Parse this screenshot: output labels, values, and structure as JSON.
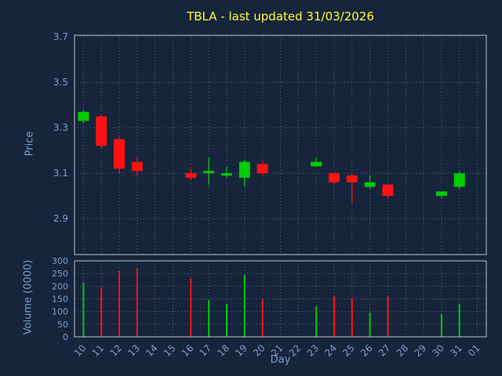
{
  "chart_data": {
    "type": "candlestick",
    "title": "TBLA - last updated 31/03/2026",
    "xlabel": "Day",
    "ylabel_price": "Price",
    "ylabel_volume": "Volume (0000)",
    "grid": "dotted",
    "price_ticks": [
      2.9,
      3.1,
      3.3,
      3.5,
      3.7
    ],
    "price_range": [
      2.742,
      3.707
    ],
    "volume_ticks": [
      0,
      50,
      100,
      150,
      200,
      250,
      300
    ],
    "volume_range": [
      0,
      300
    ],
    "x_labels": [
      "10",
      "11",
      "12",
      "13",
      "14",
      "15",
      "16",
      "17",
      "18",
      "19",
      "20",
      "21",
      "22",
      "23",
      "24",
      "25",
      "26",
      "27",
      "28",
      "29",
      "30",
      "31",
      "01"
    ],
    "colors": {
      "background": "#16243c",
      "title": "#ffff33",
      "axis_text": "#7e9fce",
      "grid": "#54667e",
      "border": "#bcc6d2",
      "up": "#00cc00",
      "down": "#ff1212"
    },
    "candles": [
      {
        "day": "10",
        "open": 3.33,
        "high": 3.38,
        "low": 3.32,
        "close": 3.37,
        "volume": 215
      },
      {
        "day": "11",
        "open": 3.35,
        "high": 3.36,
        "low": 3.21,
        "close": 3.22,
        "volume": 195
      },
      {
        "day": "12",
        "open": 3.25,
        "high": 3.26,
        "low": 3.1,
        "close": 3.12,
        "volume": 260
      },
      {
        "day": "13",
        "open": 3.15,
        "high": 3.17,
        "low": 3.09,
        "close": 3.11,
        "volume": 270
      },
      {
        "day": "16",
        "open": 3.1,
        "high": 3.12,
        "low": 3.07,
        "close": 3.08,
        "volume": 230
      },
      {
        "day": "17",
        "open": 3.1,
        "high": 3.17,
        "low": 3.05,
        "close": 3.11,
        "volume": 145
      },
      {
        "day": "18",
        "open": 3.09,
        "high": 3.13,
        "low": 3.08,
        "close": 3.1,
        "volume": 130
      },
      {
        "day": "19",
        "open": 3.08,
        "high": 3.16,
        "low": 3.04,
        "close": 3.15,
        "volume": 245
      },
      {
        "day": "20",
        "open": 3.14,
        "high": 3.15,
        "low": 3.09,
        "close": 3.1,
        "volume": 150
      },
      {
        "day": "23",
        "open": 3.13,
        "high": 3.17,
        "low": 3.13,
        "close": 3.15,
        "volume": 120
      },
      {
        "day": "24",
        "open": 3.1,
        "high": 3.1,
        "low": 3.05,
        "close": 3.06,
        "volume": 160
      },
      {
        "day": "25",
        "open": 3.09,
        "high": 3.1,
        "low": 2.97,
        "close": 3.06,
        "volume": 155
      },
      {
        "day": "26",
        "open": 3.04,
        "high": 3.09,
        "low": 3.03,
        "close": 3.06,
        "volume": 95
      },
      {
        "day": "27",
        "open": 3.05,
        "high": 3.05,
        "low": 2.99,
        "close": 3.0,
        "volume": 160
      },
      {
        "day": "30",
        "open": 3.0,
        "high": 3.02,
        "low": 2.99,
        "close": 3.02,
        "volume": 90
      },
      {
        "day": "31",
        "open": 3.04,
        "high": 3.11,
        "low": 3.03,
        "close": 3.1,
        "volume": 130
      }
    ]
  }
}
